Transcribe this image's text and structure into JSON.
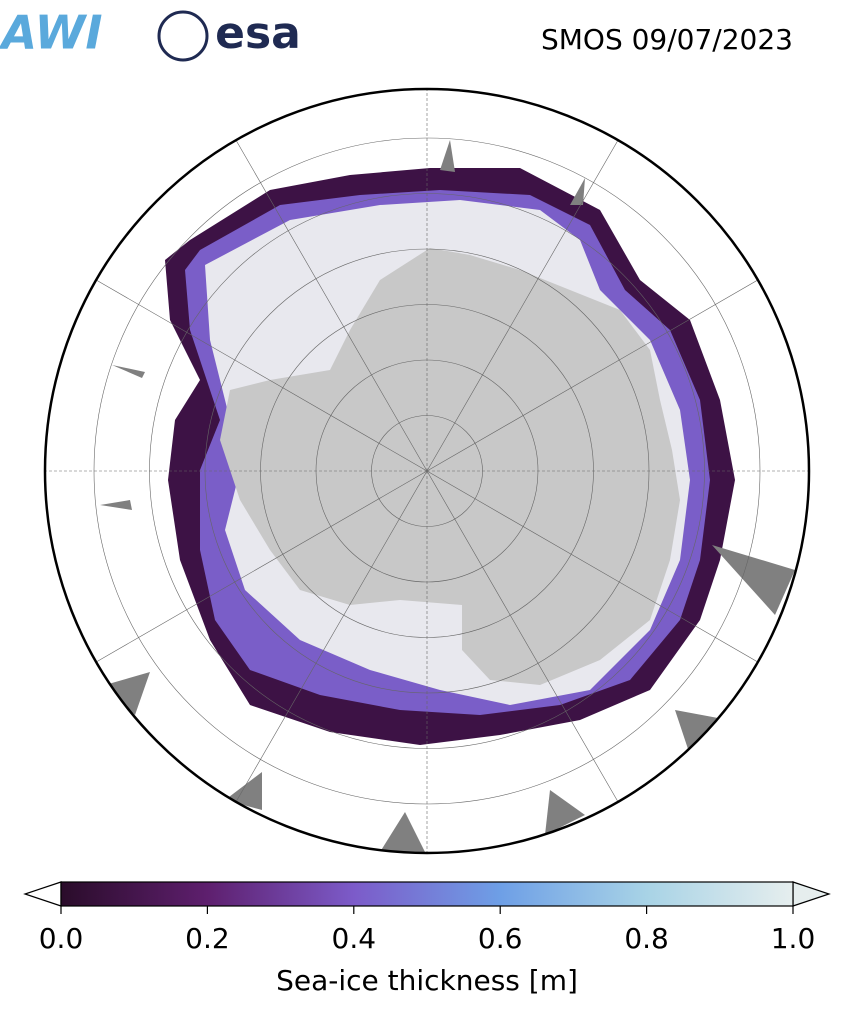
{
  "header": {
    "logos": [
      "AWI",
      "esa"
    ],
    "title": "SMOS 09/07/2023"
  },
  "colorbar": {
    "label": "Sea-ice thickness [m]",
    "lim": [
      0,
      1
    ],
    "ticks": [
      {
        "value": 0,
        "label": "0.0"
      },
      {
        "value": 0.2,
        "label": "0.2"
      },
      {
        "value": 0.4,
        "label": "0.4"
      },
      {
        "value": 0.6,
        "label": "0.6"
      },
      {
        "value": 0.8,
        "label": "0.8"
      },
      {
        "value": 1,
        "label": "1.0"
      }
    ],
    "colors": [
      "#2a0c2a",
      "#5e1f6e",
      "#7c5bc9",
      "#6e9fe6",
      "#a8d3e6",
      "#e6eeee"
    ]
  }
}
